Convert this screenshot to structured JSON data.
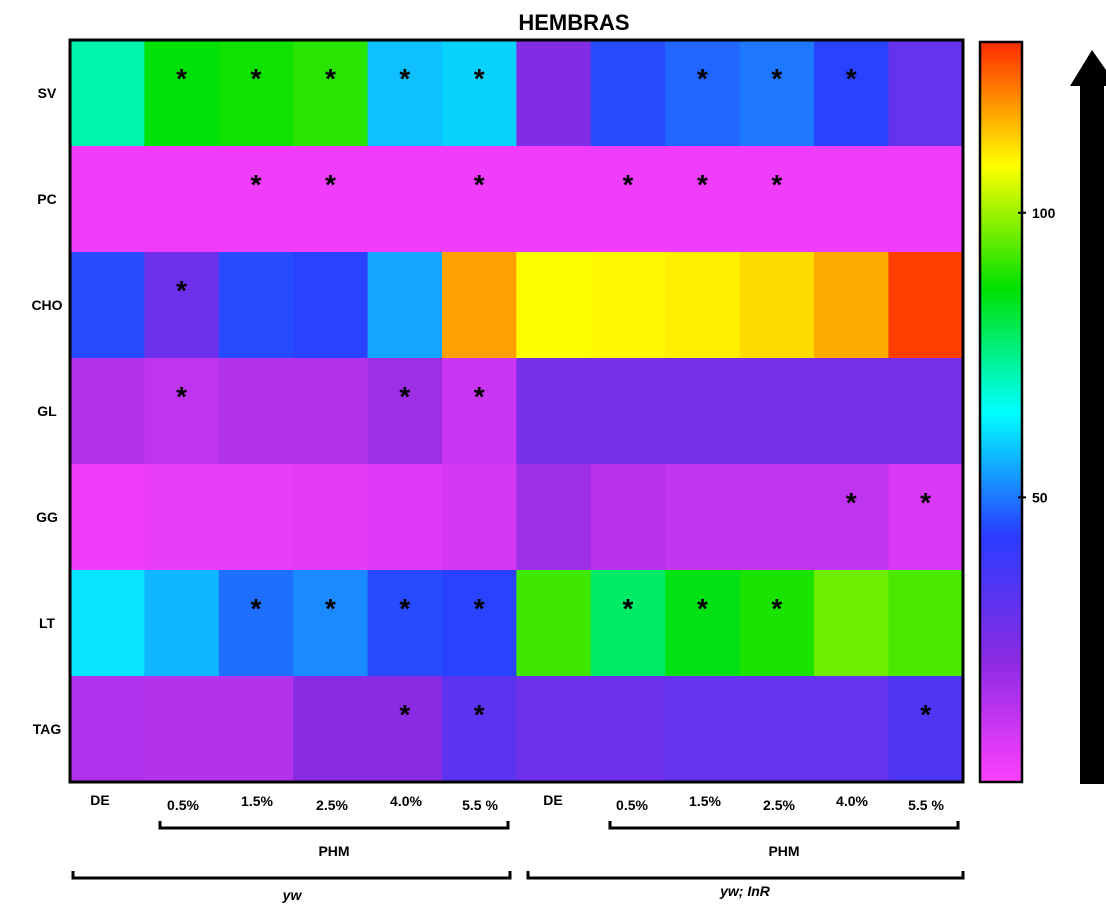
{
  "chart_data": {
    "type": "heatmap",
    "title": "HEMBRAS",
    "rows": [
      "SV",
      "PC",
      "CHO",
      "GL",
      "GG",
      "LT",
      "TAG"
    ],
    "columns": [
      "DE",
      "0.5%",
      "1.5%",
      "2.5%",
      "4.0%",
      "5.5 %",
      "DE",
      "0.5%",
      "1.5%",
      "2.5%",
      "4.0%",
      "5.5 %"
    ],
    "values": [
      [
        72,
        86,
        88,
        90,
        58,
        60,
        24,
        45,
        48,
        50,
        44,
        30
      ],
      [
        3,
        3,
        3,
        3,
        3,
        3,
        3,
        3,
        3,
        3,
        3,
        3
      ],
      [
        45,
        28,
        45,
        44,
        55,
        118,
        108,
        109,
        110,
        112,
        117,
        128
      ],
      [
        14,
        12,
        14,
        14,
        18,
        10,
        26,
        26,
        26,
        26,
        26,
        26
      ],
      [
        3,
        4,
        4,
        5,
        6,
        8,
        18,
        13,
        11,
        11,
        12,
        7
      ],
      [
        62,
        57,
        49,
        52,
        45,
        44,
        92,
        78,
        85,
        89,
        96,
        93
      ],
      [
        15,
        14,
        14,
        22,
        22,
        32,
        28,
        28,
        30,
        30,
        30,
        35
      ]
    ],
    "significance": [
      [
        false,
        true,
        true,
        true,
        true,
        true,
        false,
        false,
        true,
        true,
        true,
        false
      ],
      [
        false,
        false,
        true,
        true,
        false,
        true,
        false,
        true,
        true,
        true,
        false,
        false
      ],
      [
        false,
        true,
        false,
        false,
        false,
        false,
        false,
        false,
        false,
        false,
        false,
        false
      ],
      [
        false,
        true,
        false,
        false,
        true,
        true,
        false,
        false,
        false,
        false,
        false,
        false
      ],
      [
        false,
        false,
        false,
        false,
        false,
        false,
        false,
        false,
        false,
        false,
        true,
        true
      ],
      [
        false,
        false,
        true,
        true,
        true,
        true,
        false,
        true,
        true,
        true,
        false,
        false
      ],
      [
        false,
        false,
        false,
        false,
        true,
        true,
        false,
        false,
        false,
        false,
        false,
        true
      ]
    ],
    "significance_marker": "*",
    "colorbar": {
      "range": [
        0,
        130
      ],
      "ticks": [
        {
          "value": 100,
          "label": "100"
        },
        {
          "value": 50,
          "label": "50"
        }
      ],
      "colors": [
        "#ff40ff",
        "#8a2be2",
        "#2a3cff",
        "#00ffff",
        "#00e000",
        "#ffff00",
        "#ff2a00"
      ]
    },
    "groups": [
      {
        "label": "yw",
        "subgroup": "PHM"
      },
      {
        "label": "yw; InR",
        "subgroup": "PHM"
      }
    ]
  }
}
